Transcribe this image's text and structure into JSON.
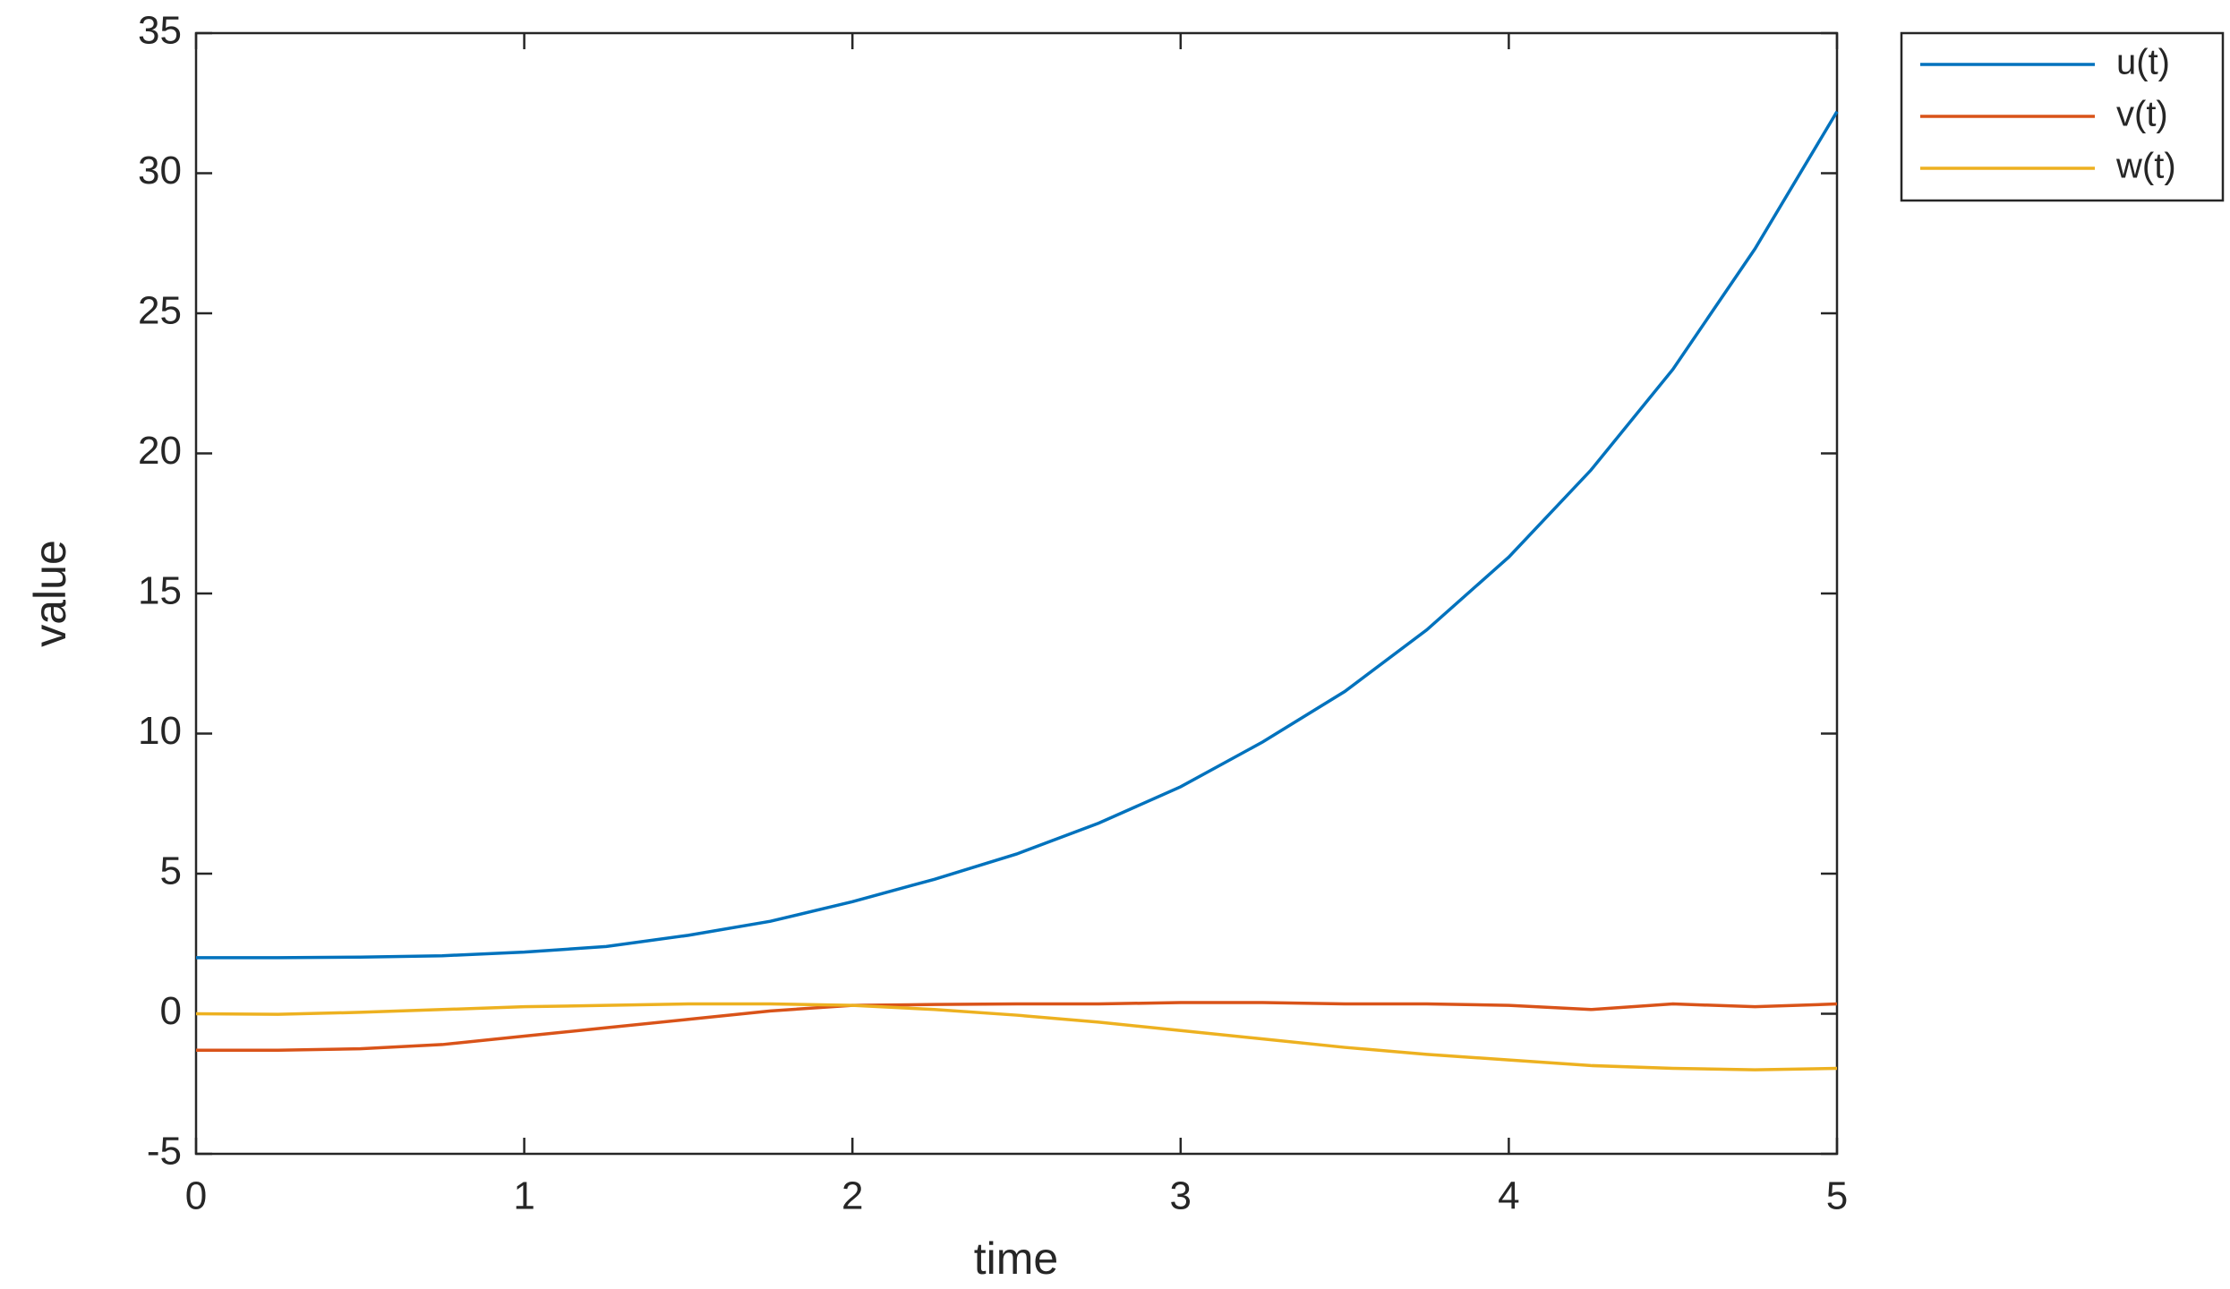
{
  "chart_data": {
    "type": "line",
    "x_label": "time",
    "y_label": "value",
    "x": [
      0,
      0.25,
      0.5,
      0.75,
      1,
      1.25,
      1.5,
      1.75,
      2,
      2.25,
      2.5,
      2.75,
      3,
      3.25,
      3.5,
      3.75,
      4,
      4.25,
      4.5,
      4.75,
      5
    ],
    "series": [
      {
        "name": "u(t)",
        "color": "#0072bd",
        "values": [
          2,
          2,
          2.02,
          2.07,
          2.2,
          2.4,
          2.8,
          3.3,
          4,
          4.8,
          5.7,
          6.8,
          8.1,
          9.7,
          11.5,
          13.7,
          16.3,
          19.4,
          23,
          27.3,
          32.2
        ]
      },
      {
        "name": "v(t)",
        "color": "#d95319",
        "values": [
          -1.3,
          -1.3,
          -1.25,
          -1.1,
          -0.8,
          -0.5,
          -0.2,
          0.1,
          0.3,
          0.33,
          0.35,
          0.35,
          0.4,
          0.4,
          0.35,
          0.35,
          0.3,
          0.15,
          0.35,
          0.25,
          0.35
        ]
      },
      {
        "name": "w(t)",
        "color": "#edb120",
        "values": [
          0,
          -0.02,
          0.05,
          0.15,
          0.25,
          0.3,
          0.35,
          0.35,
          0.3,
          0.15,
          -0.05,
          -0.3,
          -0.6,
          -0.9,
          -1.2,
          -1.45,
          -1.65,
          -1.85,
          -1.95,
          -2.0,
          -1.95
        ]
      }
    ],
    "xlim": [
      0,
      5
    ],
    "xticks": [
      0,
      1,
      2,
      3,
      4,
      5
    ],
    "ylim": [
      -5,
      35
    ],
    "yticks": [
      -5,
      0,
      5,
      10,
      15,
      20,
      25,
      30,
      35
    ],
    "legend": "outside-top-right"
  }
}
